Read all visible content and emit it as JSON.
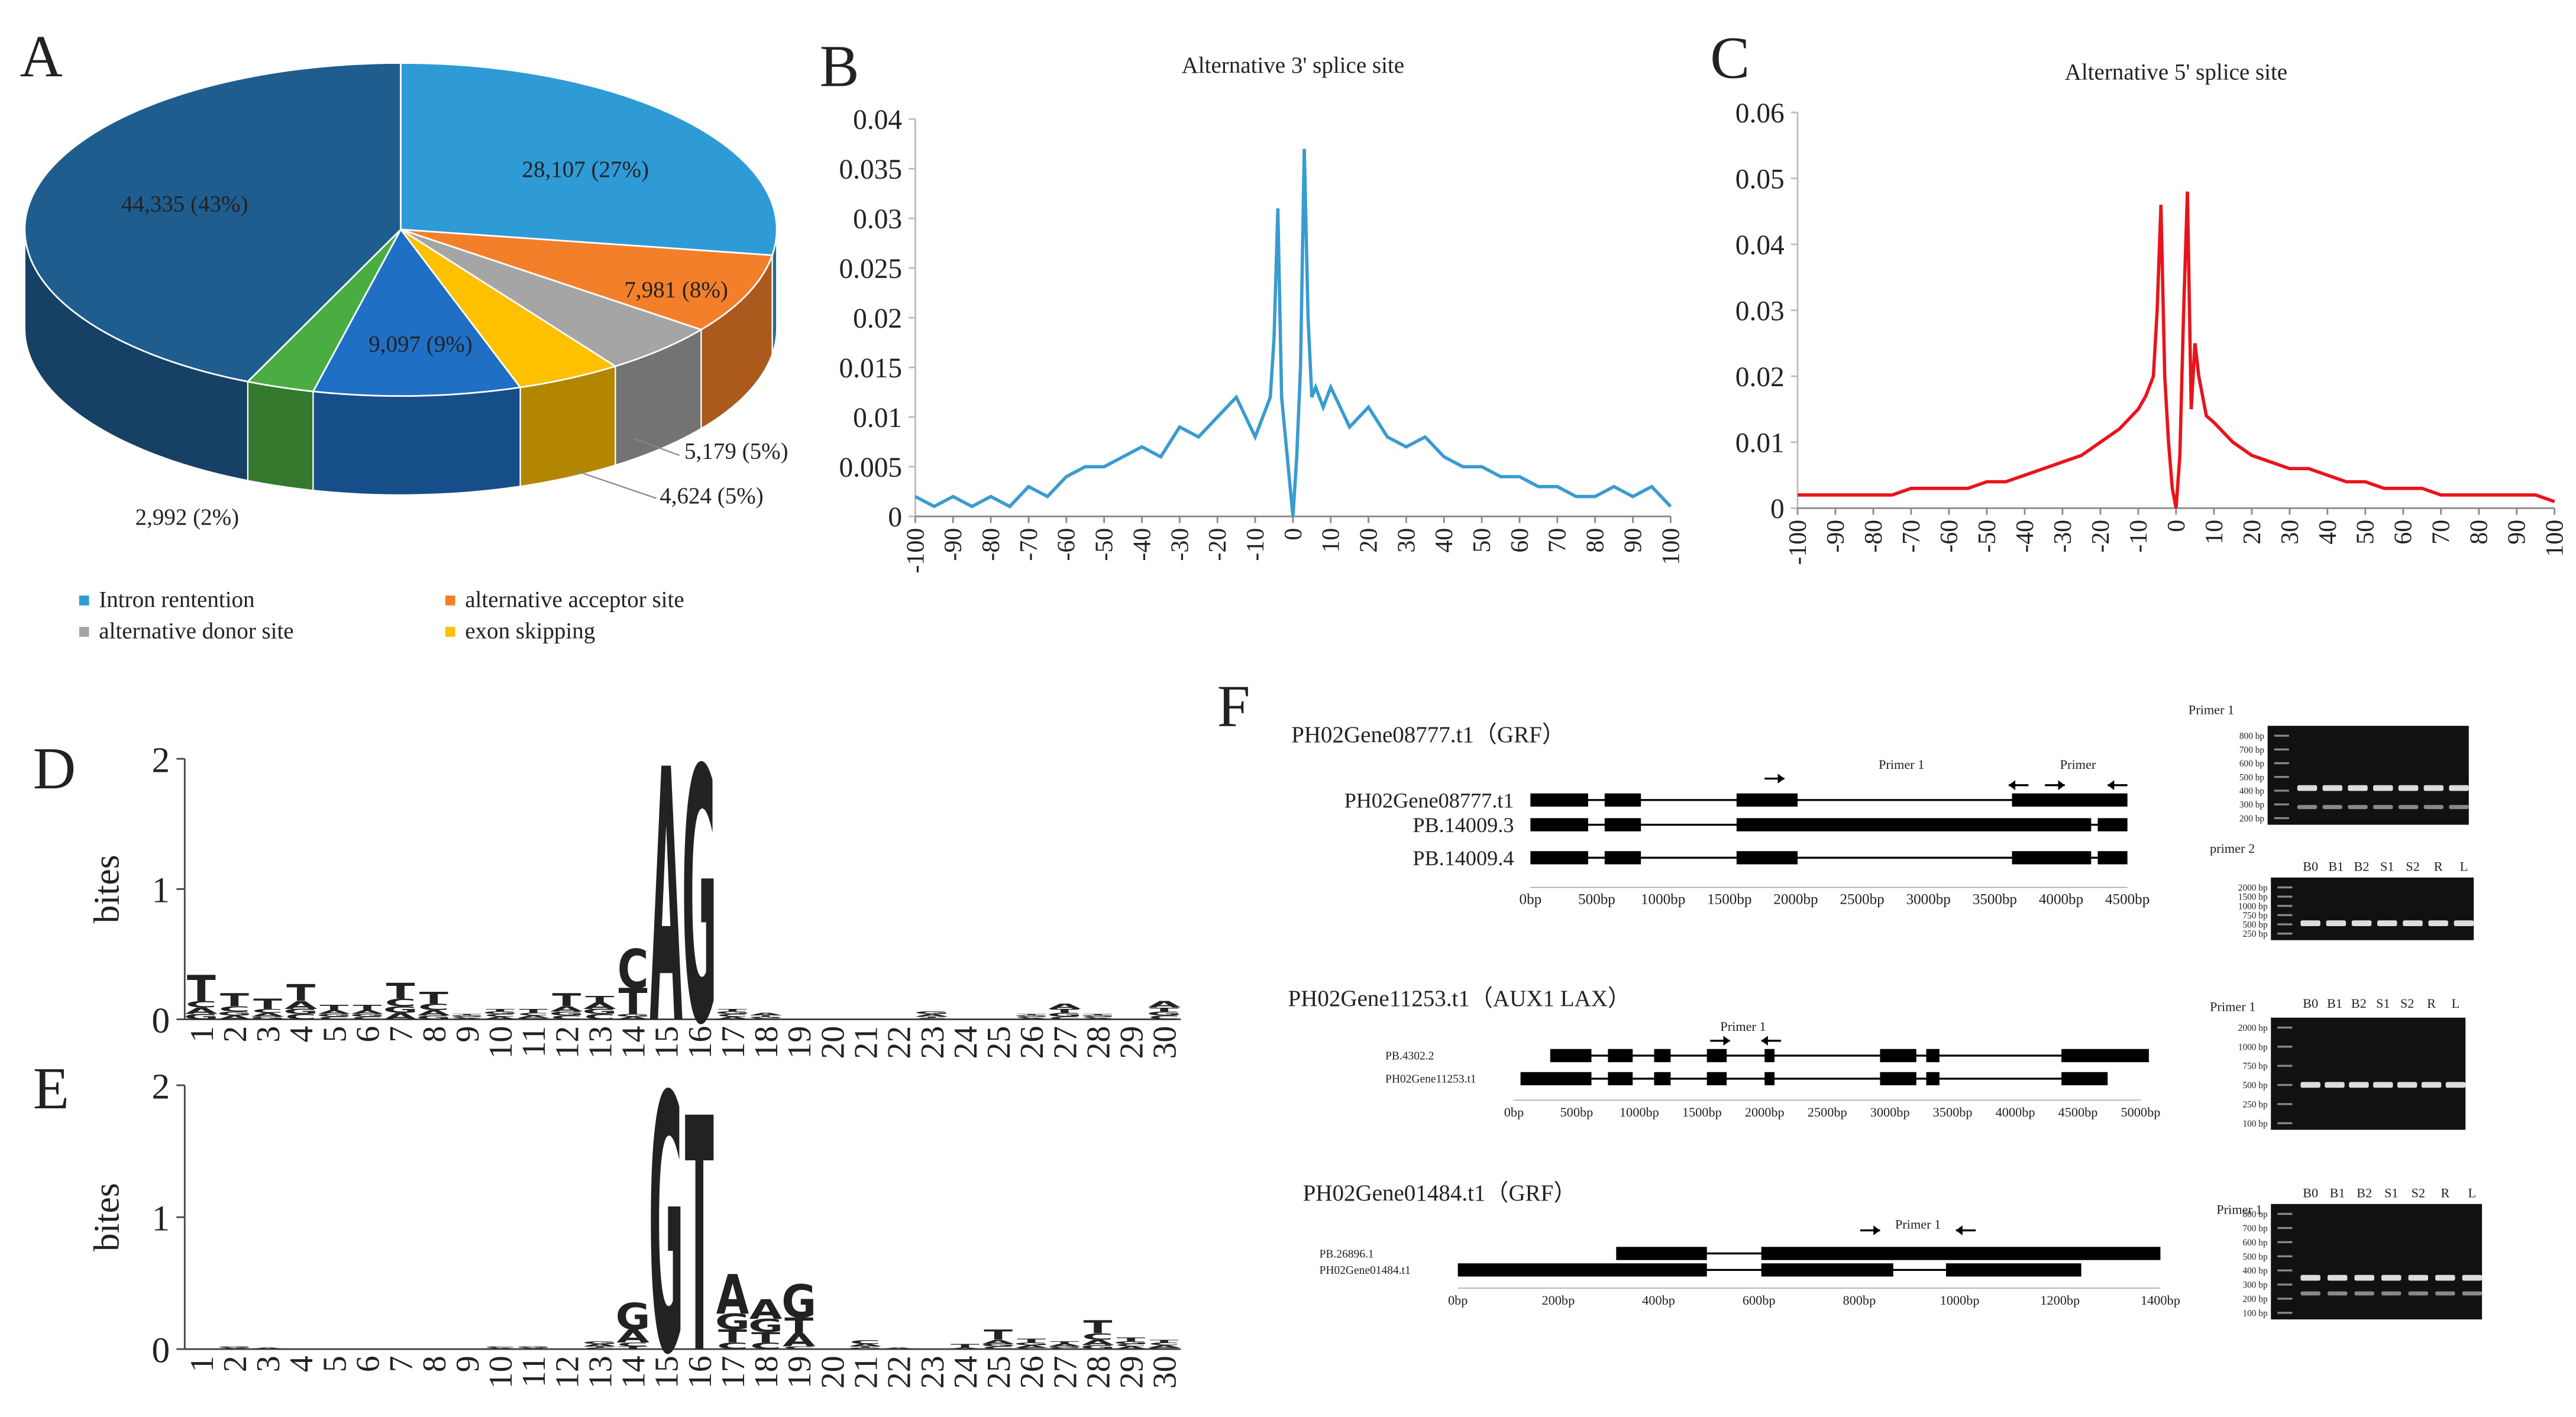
{
  "chart_data": [
    {
      "type": "pie",
      "label": "A",
      "categories": [
        "Intron rentention",
        "alternative acceptor site",
        "alternative donor site",
        "exon skipping",
        null,
        null,
        null
      ],
      "values": [
        28107,
        7981,
        5179,
        4624,
        9097,
        2992,
        44335
      ],
      "value_labels": [
        "28,107 (27%)",
        "7,981 (8%)",
        "5,179 (5%)",
        "4,624 (5%)",
        "9,097 (9%)",
        "2,992 (2%)",
        "44,335 (43%)"
      ],
      "colors": [
        "#2e9bd6",
        "#f47f2a",
        "#a5a5a5",
        "#ffc000",
        "#1f6fc5",
        "#4aad42",
        "#1f5d8f"
      ]
    },
    {
      "type": "line",
      "label": "B",
      "title": "Alternative 3' splice site",
      "x": [
        -100,
        -95,
        -90,
        -85,
        -80,
        -75,
        -70,
        -65,
        -60,
        -55,
        -50,
        -45,
        -40,
        -35,
        -30,
        -25,
        -20,
        -15,
        -10,
        -8,
        -6,
        -5,
        -4,
        -3,
        -2,
        -1,
        0,
        1,
        2,
        3,
        4,
        5,
        6,
        8,
        10,
        15,
        20,
        25,
        30,
        35,
        40,
        45,
        50,
        55,
        60,
        65,
        70,
        75,
        80,
        85,
        90,
        95,
        100
      ],
      "series": [
        {
          "color": "#3a9bd0",
          "values": [
            0.002,
            0.001,
            0.002,
            0.001,
            0.002,
            0.001,
            0.003,
            0.002,
            0.004,
            0.005,
            0.005,
            0.006,
            0.007,
            0.006,
            0.009,
            0.008,
            0.01,
            0.012,
            0.008,
            0.01,
            0.012,
            0.018,
            0.031,
            0.012,
            0.008,
            0.004,
            0.0,
            0.006,
            0.015,
            0.037,
            0.02,
            0.012,
            0.013,
            0.011,
            0.013,
            0.009,
            0.011,
            0.008,
            0.007,
            0.008,
            0.006,
            0.005,
            0.005,
            0.004,
            0.004,
            0.003,
            0.003,
            0.002,
            0.002,
            0.003,
            0.002,
            0.003,
            0.001
          ]
        }
      ],
      "xlim": [
        -100,
        100
      ],
      "xticks": [
        -100,
        -90,
        -80,
        -70,
        -60,
        -50,
        -40,
        -30,
        -20,
        -10,
        0,
        10,
        20,
        30,
        40,
        50,
        60,
        70,
        80,
        90,
        100
      ],
      "ylim": [
        0,
        0.04
      ],
      "yticks": [
        0,
        0.005,
        0.01,
        0.015,
        0.02,
        0.025,
        0.03,
        0.035,
        0.04
      ]
    },
    {
      "type": "line",
      "label": "C",
      "title": "Alternative 5' splice site",
      "x": [
        -100,
        -95,
        -90,
        -85,
        -80,
        -75,
        -70,
        -65,
        -60,
        -55,
        -50,
        -45,
        -40,
        -35,
        -30,
        -25,
        -20,
        -15,
        -10,
        -8,
        -6,
        -5,
        -4,
        -3,
        -2,
        -1,
        0,
        1,
        2,
        3,
        4,
        5,
        6,
        8,
        10,
        15,
        20,
        25,
        30,
        35,
        40,
        45,
        50,
        55,
        60,
        65,
        70,
        75,
        80,
        85,
        90,
        95,
        100
      ],
      "series": [
        {
          "color": "#e8141c",
          "values": [
            0.002,
            0.002,
            0.002,
            0.002,
            0.002,
            0.002,
            0.003,
            0.003,
            0.003,
            0.003,
            0.004,
            0.004,
            0.005,
            0.006,
            0.007,
            0.008,
            0.01,
            0.012,
            0.015,
            0.017,
            0.02,
            0.03,
            0.046,
            0.02,
            0.01,
            0.003,
            0.0,
            0.008,
            0.03,
            0.048,
            0.015,
            0.025,
            0.02,
            0.014,
            0.013,
            0.01,
            0.008,
            0.007,
            0.006,
            0.006,
            0.005,
            0.004,
            0.004,
            0.003,
            0.003,
            0.003,
            0.002,
            0.002,
            0.002,
            0.002,
            0.002,
            0.002,
            0.001
          ]
        }
      ],
      "xlim": [
        -100,
        100
      ],
      "xticks": [
        -100,
        -90,
        -80,
        -70,
        -60,
        -50,
        -40,
        -30,
        -20,
        -10,
        0,
        10,
        20,
        30,
        40,
        50,
        60,
        70,
        80,
        90,
        100
      ],
      "ylim": [
        0,
        0.06
      ],
      "yticks": [
        0,
        0.01,
        0.02,
        0.03,
        0.04,
        0.05,
        0.06
      ]
    },
    {
      "type": "logo",
      "label": "D",
      "y_label": "bites",
      "categories": [
        1,
        2,
        3,
        4,
        5,
        6,
        7,
        8,
        9,
        10,
        11,
        12,
        13,
        14,
        15,
        16,
        17,
        18,
        19,
        20,
        21,
        22,
        23,
        24,
        25,
        26,
        27,
        28,
        29,
        30
      ],
      "series": [
        {
          "name": "A",
          "color": "#e8141c",
          "values": [
            0.05,
            0.03,
            0.03,
            0.06,
            0.03,
            0.03,
            0.05,
            0.04,
            0.01,
            0.02,
            0.02,
            0.04,
            0.05,
            0.02,
            1.95,
            0,
            0.02,
            0.02,
            0,
            0,
            0,
            0,
            0.02,
            0,
            0,
            0.01,
            0.04,
            0.01,
            0,
            0.05
          ]
        },
        {
          "name": "C",
          "color": "#1f3fd0",
          "values": [
            0.05,
            0.04,
            0.03,
            0.04,
            0.02,
            0.02,
            0.06,
            0.05,
            0.01,
            0.02,
            0.02,
            0.03,
            0.04,
            0.3,
            0,
            0,
            0.02,
            0.01,
            0,
            0,
            0,
            0,
            0.01,
            0,
            0,
            0.01,
            0.02,
            0.01,
            0,
            0.03
          ]
        },
        {
          "name": "G",
          "color": "#f5a500",
          "values": [
            0.04,
            0.03,
            0.02,
            0.04,
            0.02,
            0.02,
            0.05,
            0.03,
            0.01,
            0.02,
            0.01,
            0.03,
            0.04,
            0.02,
            0,
            1.95,
            0.02,
            0.01,
            0,
            0,
            0,
            0,
            0.02,
            0,
            0,
            0.01,
            0.03,
            0.01,
            0,
            0.03
          ]
        },
        {
          "name": "T",
          "color": "#1a8a2a",
          "values": [
            0.2,
            0.1,
            0.08,
            0.13,
            0.04,
            0.04,
            0.12,
            0.09,
            0.01,
            0.02,
            0.03,
            0.1,
            0.05,
            0.2,
            0,
            0,
            0.02,
            0.01,
            0,
            0,
            0,
            0,
            0.01,
            0,
            0,
            0.01,
            0.03,
            0.01,
            0,
            0.03
          ]
        }
      ],
      "ylim": [
        0,
        2
      ],
      "yticks": [
        0,
        1,
        2
      ]
    },
    {
      "type": "logo",
      "label": "E",
      "y_label": "bites",
      "categories": [
        1,
        2,
        3,
        4,
        5,
        6,
        7,
        8,
        9,
        10,
        11,
        12,
        13,
        14,
        15,
        16,
        17,
        18,
        19,
        20,
        21,
        22,
        23,
        24,
        25,
        26,
        27,
        28,
        29,
        30
      ],
      "series": [
        {
          "name": "A",
          "color": "#e8141c",
          "values": [
            0,
            0.01,
            0.01,
            0,
            0,
            0,
            0,
            0,
            0,
            0.01,
            0.01,
            0,
            0.02,
            0.1,
            0,
            0,
            0.3,
            0.15,
            0.1,
            0,
            0.02,
            0.01,
            0,
            0.01,
            0.03,
            0.02,
            0.02,
            0.04,
            0.02,
            0.02
          ]
        },
        {
          "name": "C",
          "color": "#1f3fd0",
          "values": [
            0,
            0,
            0,
            0,
            0,
            0,
            0,
            0,
            0,
            0.01,
            0,
            0,
            0.01,
            0.03,
            0,
            0,
            0.05,
            0.05,
            0.02,
            0,
            0.03,
            0,
            0,
            0,
            0.02,
            0.01,
            0.01,
            0.05,
            0.02,
            0.02
          ]
        },
        {
          "name": "G",
          "color": "#f5a500",
          "values": [
            0,
            0.01,
            0,
            0,
            0,
            0,
            0,
            0,
            0,
            0,
            0.01,
            0,
            0.02,
            0.2,
            1.95,
            0,
            0.12,
            0.1,
            0.25,
            0,
            0.01,
            0,
            0,
            0,
            0.02,
            0.02,
            0.01,
            0.03,
            0.02,
            0.01
          ]
        },
        {
          "name": "T",
          "color": "#1a8a2a",
          "values": [
            0,
            0,
            0,
            0,
            0,
            0,
            0,
            0,
            0,
            0,
            0,
            0,
            0.01,
            0.02,
            0,
            1.78,
            0.1,
            0.08,
            0.12,
            0,
            0.01,
            0,
            0,
            0.03,
            0.08,
            0.03,
            0.02,
            0.1,
            0.03,
            0.02
          ]
        }
      ],
      "ylim": [
        0,
        2
      ],
      "yticks": [
        0,
        1,
        2
      ]
    }
  ],
  "panel_f": {
    "label": "F",
    "genes": [
      {
        "title": "PH02Gene08777.t1（GRF）",
        "transcripts": [
          "PH02Gene08777.t1",
          "PB.14009.3",
          "PB.14009.4"
        ],
        "primers": [
          "Primer 1",
          "Primer"
        ],
        "scale": [
          "0bp",
          "500bp",
          "1000bp",
          "1500bp",
          "2000bp",
          "2500bp",
          "3000bp",
          "3500bp",
          "4000bp",
          "4500bp"
        ],
        "gels": [
          {
            "title": "Primer 1",
            "ladder": [
              "800 bp",
              "700 bp",
              "600 bp",
              "500 bp",
              "400 bp",
              "300 bp",
              "200 bp"
            ]
          },
          {
            "title": "primer 2",
            "lanes": [
              "B0",
              "B1",
              "B2",
              "S1",
              "S2",
              "R",
              "L"
            ],
            "ladder": [
              "2000 bp",
              "1500 bp",
              "1000 bp",
              "750 bp",
              "500 bp",
              "250 bp"
            ]
          }
        ]
      },
      {
        "title": "PH02Gene11253.t1（AUX1 LAX）",
        "transcripts": [
          "PB.4302.2",
          "PH02Gene11253.t1"
        ],
        "primers": [
          "Primer 1"
        ],
        "scale": [
          "0bp",
          "500bp",
          "1000bp",
          "1500bp",
          "2000bp",
          "2500bp",
          "3000bp",
          "3500bp",
          "4000bp",
          "4500bp",
          "5000bp"
        ],
        "gels": [
          {
            "title": "Primer 1",
            "lanes": [
              "B0",
              "B1",
              "B2",
              "S1",
              "S2",
              "R",
              "L"
            ],
            "ladder": [
              "2000 bp",
              "1000 bp",
              "750 bp",
              "500 bp",
              "250 bp",
              "100 bp"
            ]
          }
        ]
      },
      {
        "title": "PH02Gene01484.t1（GRF）",
        "transcripts": [
          "PB.26896.1",
          "PH02Gene01484.t1"
        ],
        "primers": [
          "Primer 1"
        ],
        "scale": [
          "0bp",
          "200bp",
          "400bp",
          "600bp",
          "800bp",
          "1000bp",
          "1200bp",
          "1400bp"
        ],
        "gels": [
          {
            "title": "Primer 1",
            "lanes": [
              "B0",
              "B1",
              "B2",
              "S1",
              "S2",
              "R",
              "L"
            ],
            "ladder": [
              "800 bp",
              "700 bp",
              "600 bp",
              "500 bp",
              "400 bp",
              "300 bp",
              "200 bp",
              "100 bp"
            ]
          }
        ]
      }
    ]
  }
}
